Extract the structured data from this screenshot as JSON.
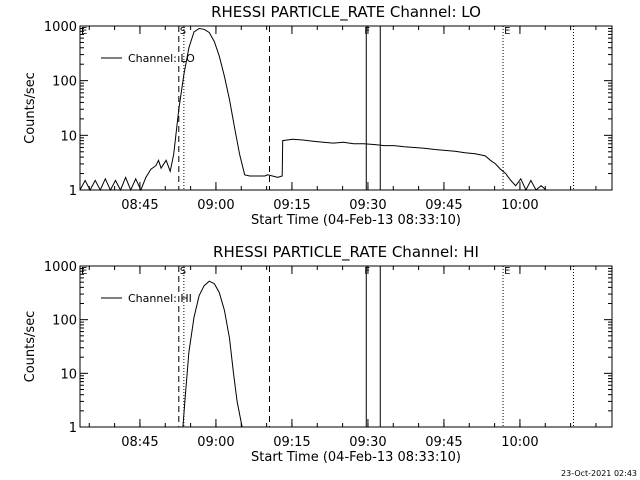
{
  "chart_data": [
    {
      "type": "line",
      "title": "RHESSI PARTICLE_RATE Channel: LO",
      "ylabel": "Counts/sec",
      "xlabel": "Start Time (04-Feb-13 08:33:10)",
      "yscale": "log",
      "ylim": [
        1,
        1000
      ],
      "y_ticks": [
        1,
        10,
        100,
        1000
      ],
      "y_tick_labels": [
        "1",
        "10",
        "100",
        "1000"
      ],
      "x_unit": "minutes after 08:33:10",
      "xlim": [
        0,
        105
      ],
      "x_ticks": [
        11.83,
        26.83,
        41.83,
        56.83,
        71.83,
        86.83
      ],
      "x_tick_labels": [
        "08:45",
        "09:00",
        "09:15",
        "09:30",
        "09:45",
        "10:00"
      ],
      "legend": "Channel: LO",
      "legend_position": "top-left",
      "series": [
        {
          "name": "Channel: LO",
          "x": [
            0,
            1,
            2,
            3,
            4,
            5,
            6,
            7,
            8,
            9,
            10,
            11,
            12,
            13,
            14,
            15,
            15.5,
            16,
            17,
            17.8,
            18.5,
            19.5,
            20.5,
            21.5,
            22.5,
            23.5,
            24.5,
            25.5,
            26.5,
            27.5,
            28.5,
            29.5,
            30.5,
            31.5,
            32.5,
            33.5,
            34.5,
            35.5,
            36.5,
            37,
            38,
            39,
            39.9,
            40,
            42,
            44,
            46,
            48,
            50,
            52,
            54,
            56,
            58,
            60,
            62,
            64,
            66,
            68,
            70,
            72,
            74,
            76,
            78,
            80,
            81,
            82,
            83,
            84,
            85,
            86,
            87,
            88,
            89,
            90,
            91,
            92,
            94,
            96
          ],
          "values": [
            1,
            1.5,
            1,
            1.5,
            1,
            1.6,
            1,
            1.5,
            1,
            1.7,
            1,
            1.6,
            1,
            1.7,
            2.4,
            2.8,
            3.5,
            2.5,
            3.5,
            2.2,
            4.5,
            30,
            130,
            400,
            780,
            900,
            870,
            760,
            520,
            280,
            120,
            45,
            14,
            4.5,
            1.9,
            1.8,
            1.8,
            1.8,
            1.8,
            1.9,
            1.8,
            1.7,
            1.8,
            8,
            8.5,
            8.2,
            7.8,
            7.5,
            7.2,
            7.5,
            7,
            7,
            6.8,
            6.5,
            6.5,
            6.2,
            6,
            5.8,
            5.5,
            5.3,
            5.1,
            4.8,
            4.6,
            4.2,
            3.5,
            3.0,
            2.4,
            2.0,
            1.5,
            1.2,
            1.6,
            1,
            1.5,
            1,
            1.2,
            1,
            1,
            1
          ]
        }
      ],
      "markers": [
        {
          "label": "E",
          "x": 0
        },
        {
          "label": "S",
          "x": 19.5
        },
        {
          "label": "F",
          "x": 56.5
        },
        {
          "label": "E",
          "x": 83.5
        }
      ]
    },
    {
      "type": "line",
      "title": "RHESSI PARTICLE_RATE Channel: HI",
      "ylabel": "Counts/sec",
      "xlabel": "Start Time (04-Feb-13 08:33:10)",
      "yscale": "log",
      "ylim": [
        1,
        1000
      ],
      "y_ticks": [
        1,
        10,
        100,
        1000
      ],
      "y_tick_labels": [
        "1",
        "10",
        "100",
        "1000"
      ],
      "x_unit": "minutes after 08:33:10",
      "xlim": [
        0,
        105
      ],
      "x_ticks": [
        11.83,
        26.83,
        41.83,
        56.83,
        71.83,
        86.83
      ],
      "x_tick_labels": [
        "08:45",
        "09:00",
        "09:15",
        "09:30",
        "09:45",
        "10:00"
      ],
      "legend": "Channel: HI",
      "legend_position": "top-left",
      "series": [
        {
          "name": "Channel: HI",
          "x": [
            20.3,
            20.8,
            21.5,
            22.5,
            23.5,
            24.5,
            25.5,
            26.5,
            27.5,
            28.5,
            29.5,
            30.3,
            31,
            32
          ],
          "values": [
            1,
            4,
            25,
            110,
            280,
            430,
            520,
            470,
            320,
            150,
            45,
            10,
            3,
            1
          ]
        }
      ],
      "markers": [
        {
          "label": "E",
          "x": 0
        },
        {
          "label": "S",
          "x": 19.5
        },
        {
          "label": "F",
          "x": 56.5
        },
        {
          "label": "E",
          "x": 83.5
        }
      ]
    }
  ],
  "timestamp": "23-Oct-2021 02:43",
  "colors": {
    "background": "#ffffff",
    "foreground": "#000000"
  }
}
